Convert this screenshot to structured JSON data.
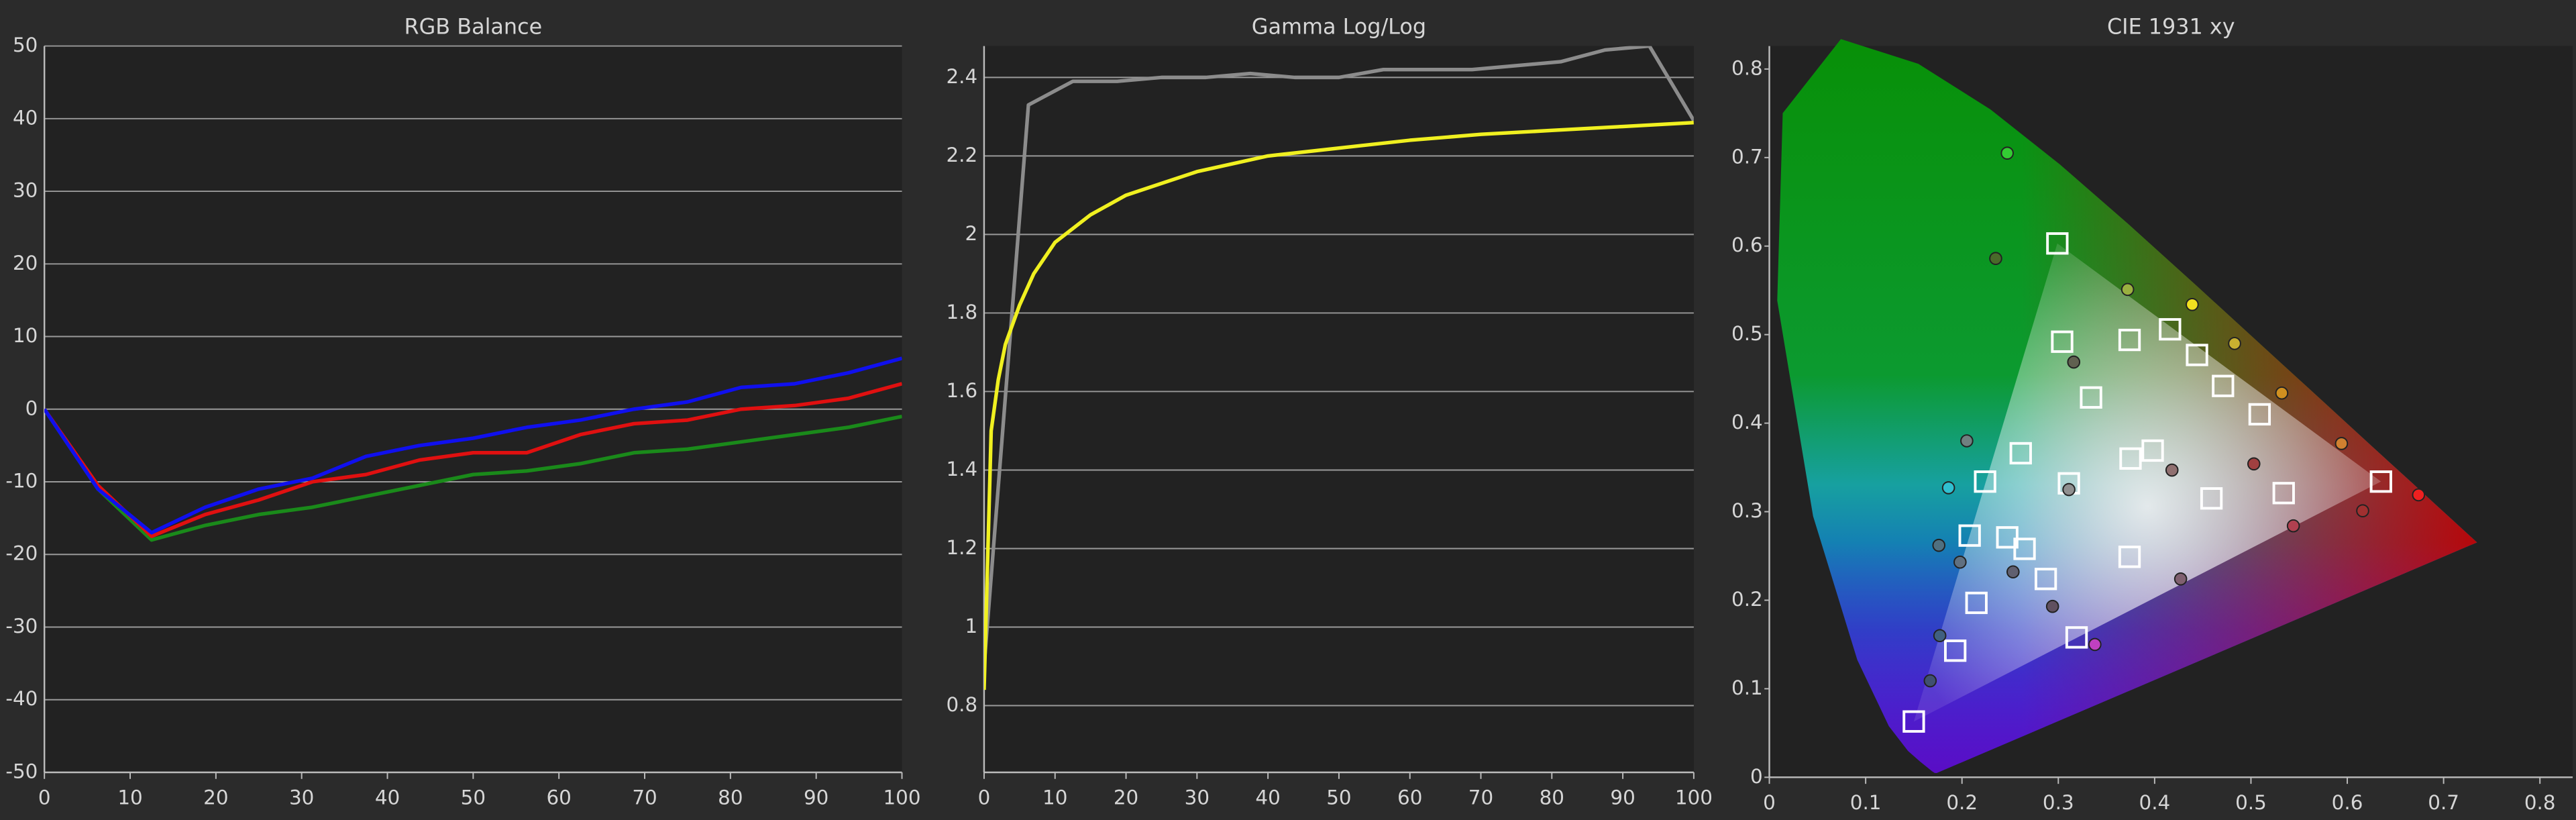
{
  "chart_data": [
    {
      "type": "line",
      "title": "RGB Balance",
      "x": [
        0,
        6.25,
        12.5,
        18.75,
        25,
        31.25,
        37.5,
        43.75,
        50,
        56.25,
        62.5,
        68.75,
        75,
        81.25,
        87.5,
        93.75,
        100
      ],
      "xlim": [
        0,
        100
      ],
      "xticks": [
        0,
        10,
        20,
        30,
        40,
        50,
        60,
        70,
        80,
        90,
        100
      ],
      "ylim": [
        -50,
        50
      ],
      "yticks": [
        -50,
        -40,
        -30,
        -20,
        -10,
        0,
        10,
        20,
        30,
        40,
        50
      ],
      "grid": true,
      "series": [
        {
          "color": "#1a8a1a",
          "values": [
            0,
            -11,
            -18,
            -16,
            -14.5,
            -13.5,
            -12,
            -10.5,
            -9,
            -8.5,
            -7.5,
            -6,
            -5.5,
            -4.5,
            -3.5,
            -2.5,
            -1
          ]
        },
        {
          "color": "#e01010",
          "values": [
            0,
            -10.5,
            -17.5,
            -14.5,
            -12.5,
            -10,
            -9,
            -7,
            -6,
            -6,
            -3.5,
            -2,
            -1.5,
            0,
            0.5,
            1.5,
            3.5
          ]
        },
        {
          "color": "#1010ee",
          "values": [
            0,
            -11,
            -17,
            -13.5,
            -11,
            -9.5,
            -6.5,
            -5,
            -4,
            -2.5,
            -1.5,
            0,
            1,
            3,
            3.5,
            5,
            7
          ]
        }
      ]
    },
    {
      "type": "line",
      "title": "Gamma Log/Log",
      "xlim": [
        0,
        100
      ],
      "xticks": [
        0,
        10,
        20,
        30,
        40,
        50,
        60,
        70,
        80,
        90,
        100
      ],
      "ylim": [
        0.63,
        2.48
      ],
      "yticks": [
        0.8,
        1,
        1.2,
        1.4,
        1.6,
        1.8,
        2,
        2.2,
        2.4
      ],
      "grid": true,
      "series": [
        {
          "color": "#8c8c8c",
          "x": [
            0,
            6.25,
            12.5,
            18.75,
            25,
            31.25,
            37.5,
            43.75,
            50,
            56.25,
            62.5,
            68.75,
            75,
            81.25,
            87.5,
            93.75,
            100
          ],
          "values": [
            0.9,
            2.33,
            2.39,
            2.39,
            2.4,
            2.4,
            2.41,
            2.4,
            2.4,
            2.42,
            2.42,
            2.42,
            2.43,
            2.44,
            2.47,
            2.48,
            2.29
          ]
        },
        {
          "color": "#f0f020",
          "x": [
            0,
            1,
            2,
            3,
            5,
            7,
            10,
            15,
            20,
            25,
            30,
            40,
            50,
            60,
            70,
            80,
            90,
            100
          ],
          "values": [
            0.84,
            1.5,
            1.63,
            1.72,
            1.82,
            1.9,
            1.98,
            2.05,
            2.1,
            2.13,
            2.16,
            2.2,
            2.22,
            2.24,
            2.255,
            2.265,
            2.275,
            2.285
          ]
        }
      ]
    },
    {
      "type": "scatter",
      "title": "CIE 1931 xy",
      "xlim": [
        0,
        0.834
      ],
      "xticks": [
        0,
        0.1,
        0.2,
        0.3,
        0.4,
        0.5,
        0.6,
        0.7,
        0.8
      ],
      "ylim": [
        0,
        0.826
      ],
      "yticks": [
        0,
        0.1,
        0.2,
        0.3,
        0.4,
        0.5,
        0.6,
        0.7,
        0.8
      ],
      "grid": false,
      "locus": {
        "x": [
          0.1741,
          0.1738,
          0.1733,
          0.1726,
          0.1714,
          0.1689,
          0.1644,
          0.1566,
          0.144,
          0.1241,
          0.0913,
          0.0454,
          0.0082,
          0.0139,
          0.0743,
          0.1547,
          0.2296,
          0.3016,
          0.3731,
          0.4441,
          0.5125,
          0.5752,
          0.627,
          0.6658,
          0.6915,
          0.7079,
          0.7347
        ],
        "y": [
          0.005,
          0.0049,
          0.0048,
          0.0048,
          0.0051,
          0.0069,
          0.0109,
          0.0177,
          0.0297,
          0.0578,
          0.1327,
          0.295,
          0.5384,
          0.7502,
          0.8338,
          0.8059,
          0.7543,
          0.6923,
          0.6245,
          0.5547,
          0.4866,
          0.4242,
          0.3725,
          0.334,
          0.3083,
          0.292,
          0.2653
        ]
      },
      "series": [
        {
          "marker": "square",
          "color": "#ffffff",
          "x": [
            0.299,
            0.15,
            0.635,
            0.311,
            0.304,
            0.374,
            0.416,
            0.444,
            0.471,
            0.509,
            0.534,
            0.459,
            0.398,
            0.375,
            0.374,
            0.334,
            0.261,
            0.224,
            0.208,
            0.247,
            0.265,
            0.287,
            0.215,
            0.193,
            0.319
          ],
          "y": [
            0.603,
            0.063,
            0.334,
            0.332,
            0.492,
            0.494,
            0.506,
            0.477,
            0.442,
            0.41,
            0.321,
            0.315,
            0.369,
            0.36,
            0.249,
            0.429,
            0.366,
            0.334,
            0.273,
            0.271,
            0.258,
            0.224,
            0.197,
            0.143,
            0.158
          ]
        },
        {
          "marker": "circle",
          "x": [
            0.247,
            0.235,
            0.372,
            0.439,
            0.483,
            0.532,
            0.594,
            0.674,
            0.616,
            0.544,
            0.503,
            0.418,
            0.427,
            0.338,
            0.294,
            0.253,
            0.198,
            0.176,
            0.186,
            0.205,
            0.316,
            0.311,
            0.177,
            0.167
          ],
          "y": [
            0.705,
            0.586,
            0.551,
            0.534,
            0.49,
            0.434,
            0.377,
            0.319,
            0.301,
            0.284,
            0.354,
            0.347,
            0.224,
            0.15,
            0.193,
            0.232,
            0.243,
            0.262,
            0.327,
            0.38,
            0.469,
            0.325,
            0.16,
            0.109
          ],
          "colors": [
            "#33cc33",
            "#4a6a2a",
            "#9ab040",
            "#f0e020",
            "#c8b030",
            "#d09020",
            "#d08030",
            "#ee2020",
            "#a03030",
            "#b04050",
            "#a04040",
            "#907070",
            "#806070",
            "#c040c0",
            "#605060",
            "#606070",
            "#607080",
            "#507080",
            "#30c0d0",
            "#708080",
            "#606050",
            "#909090",
            "#406080",
            "#405070"
          ]
        }
      ]
    }
  ]
}
